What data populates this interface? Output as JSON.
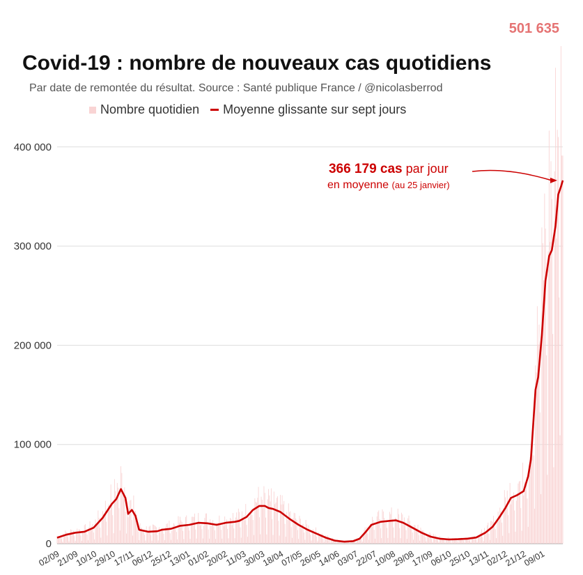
{
  "title": "Covid-19 : nombre de nouveaux cas quotidiens",
  "subtitle": "Par date de remontée du résultat. Source : Santé publique France / @nicolasberrod",
  "legend": {
    "daily": "Nombre quotidien",
    "average": "Moyenne glissante sur sept jours"
  },
  "max_label": "501 635",
  "annotation": {
    "value": "366 179 cas",
    "line1_rest": " par jour",
    "line2": "en moyenne",
    "date_note": "(au 25 janvier)"
  },
  "colors": {
    "daily_bars": "#f9d4d4",
    "average_line": "#cc0000",
    "max_label": "#e57373",
    "grid": "#dddddd"
  },
  "chart_data": {
    "type": "line",
    "title": "Covid-19 : nombre de nouveaux cas quotidiens",
    "ylim": [
      0,
      520000
    ],
    "yticks": [
      0,
      100000,
      200000,
      300000,
      400000
    ],
    "ytick_labels": [
      "0",
      "100 000",
      "200 000",
      "300 000",
      "400 000"
    ],
    "xtick_labels": [
      "02/09",
      "21/09",
      "10/10",
      "29/10",
      "17/11",
      "06/12",
      "25/12",
      "13/01",
      "01/02",
      "20/02",
      "11/03",
      "30/03",
      "18/04",
      "07/05",
      "26/05",
      "14/06",
      "03/07",
      "22/07",
      "10/08",
      "29/08",
      "17/09",
      "06/10",
      "25/10",
      "13/11",
      "02/12",
      "21/12",
      "09/01"
    ],
    "grid": true,
    "legend": "top",
    "series": [
      {
        "name": "Moyenne glissante sur sept jours",
        "kind": "line",
        "points": [
          [
            0,
            6000
          ],
          [
            10,
            9000
          ],
          [
            20,
            11000
          ],
          [
            30,
            12000
          ],
          [
            40,
            16000
          ],
          [
            50,
            26000
          ],
          [
            60,
            40000
          ],
          [
            65,
            45000
          ],
          [
            70,
            55000
          ],
          [
            75,
            46000
          ],
          [
            78,
            30000
          ],
          [
            82,
            34000
          ],
          [
            86,
            28000
          ],
          [
            90,
            14000
          ],
          [
            100,
            12000
          ],
          [
            110,
            12500
          ],
          [
            115,
            14000
          ],
          [
            125,
            15000
          ],
          [
            135,
            18000
          ],
          [
            145,
            19000
          ],
          [
            155,
            21000
          ],
          [
            165,
            20500
          ],
          [
            175,
            19000
          ],
          [
            185,
            21000
          ],
          [
            195,
            22000
          ],
          [
            200,
            23000
          ],
          [
            208,
            27000
          ],
          [
            215,
            34000
          ],
          [
            222,
            38000
          ],
          [
            228,
            38000
          ],
          [
            232,
            36000
          ],
          [
            237,
            35000
          ],
          [
            245,
            32000
          ],
          [
            255,
            25000
          ],
          [
            265,
            19000
          ],
          [
            275,
            14000
          ],
          [
            285,
            10000
          ],
          [
            295,
            6000
          ],
          [
            305,
            3000
          ],
          [
            315,
            2000
          ],
          [
            325,
            2500
          ],
          [
            332,
            5000
          ],
          [
            338,
            11000
          ],
          [
            345,
            19000
          ],
          [
            355,
            22000
          ],
          [
            365,
            23000
          ],
          [
            372,
            23500
          ],
          [
            380,
            21000
          ],
          [
            390,
            16000
          ],
          [
            400,
            11000
          ],
          [
            410,
            7000
          ],
          [
            420,
            5000
          ],
          [
            430,
            4200
          ],
          [
            440,
            4500
          ],
          [
            450,
            5000
          ],
          [
            460,
            6200
          ],
          [
            470,
            11000
          ],
          [
            478,
            17000
          ],
          [
            485,
            26000
          ],
          [
            492,
            36000
          ],
          [
            498,
            46000
          ],
          [
            505,
            49000
          ],
          [
            512,
            53000
          ],
          [
            517,
            68000
          ],
          [
            520,
            85000
          ],
          [
            525,
            155000
          ],
          [
            528,
            168000
          ],
          [
            532,
            210000
          ],
          [
            536,
            265000
          ],
          [
            540,
            290000
          ],
          [
            543,
            296000
          ],
          [
            547,
            320000
          ],
          [
            550,
            352000
          ],
          [
            553,
            360000
          ],
          [
            555,
            366179
          ]
        ]
      },
      {
        "name": "Nombre quotidien",
        "kind": "bar",
        "max": 501635
      }
    ]
  }
}
